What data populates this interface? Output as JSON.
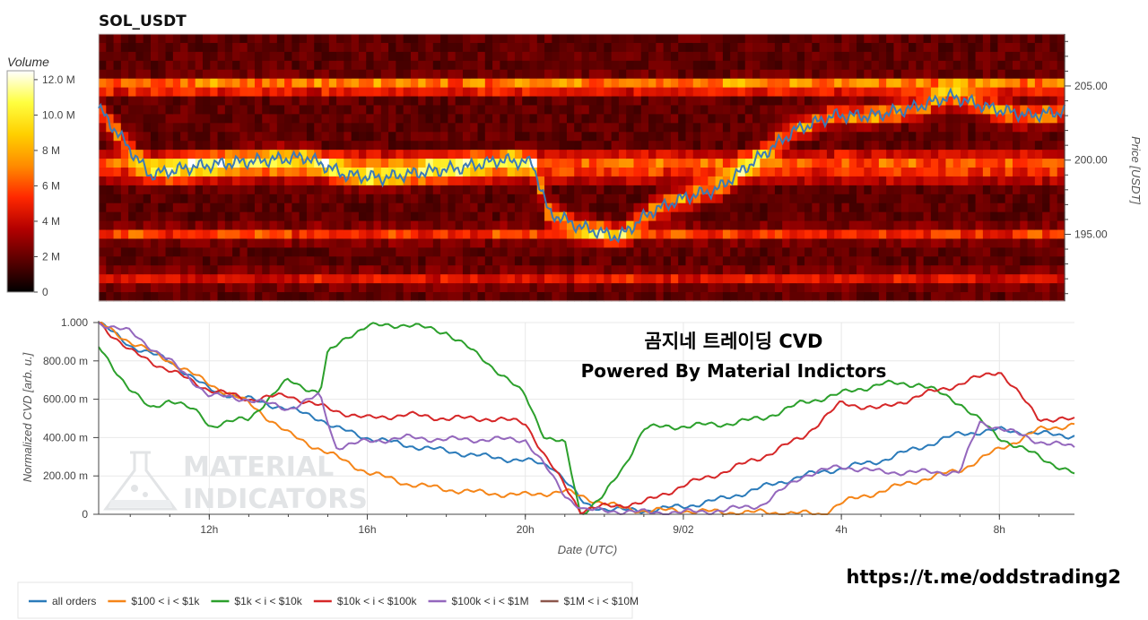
{
  "chart_data": [
    {
      "type": "heatmap",
      "title": "SOL_USDT",
      "ylabel": "Price [USDT]",
      "ylim": [
        190.5,
        208.5
      ],
      "y_ticks": [
        "205.00",
        "200.00",
        "195.00"
      ],
      "colorbar": {
        "label": "Volume",
        "range": [
          0,
          12500000
        ],
        "ticks": [
          "12.0 M",
          "10.0 M",
          "8 M",
          "6 M",
          "4 M",
          "2 M",
          "0"
        ]
      },
      "colormap": [
        "#000000",
        "#5a0000",
        "#b30000",
        "#ff2800",
        "#ff8c00",
        "#ffd000",
        "#ffff40",
        "#ffffff"
      ],
      "price_series": {
        "color": "#3d7ab5",
        "x_hours": [
          9.2,
          10.5,
          11.5,
          12.5,
          13.5,
          14.5,
          15.5,
          16.5,
          17.5,
          18.5,
          19.5,
          20.3,
          20.7,
          21.5,
          22.5,
          23.3,
          24.2,
          25.0,
          26.0,
          27.0,
          28.0,
          29.0,
          30.0,
          31.0,
          32.0,
          33.0,
          33.9
        ],
        "values": [
          203.5,
          199.0,
          199.5,
          199.8,
          200.0,
          200.2,
          199.0,
          198.8,
          199.2,
          199.5,
          200.0,
          199.8,
          196.5,
          195.5,
          194.8,
          196.5,
          197.5,
          198.0,
          200.0,
          202.0,
          203.0,
          203.0,
          203.5,
          204.3,
          203.5,
          203.0,
          203.3
        ]
      },
      "heat_levels": [
        {
          "price": 205.0,
          "volume": 8000000
        },
        {
          "price": 200.0,
          "volume": 6500000
        },
        {
          "price": 199.0,
          "volume": 5000000
        },
        {
          "price": 195.0,
          "volume": 4500000
        },
        {
          "price": 192.0,
          "volume": 3500000
        }
      ]
    },
    {
      "type": "line",
      "title": "곰지네 트레이딩 CVD",
      "subtitle": "Powered By Material Indictors",
      "xlabel": "Date (UTC)",
      "ylabel": "Normalized CVD [arb. u.]",
      "xlim": [
        9.2,
        33.9
      ],
      "ylim": [
        0,
        1.0
      ],
      "x_ticks": [
        {
          "hour": 12,
          "label": "12h"
        },
        {
          "hour": 16,
          "label": "16h"
        },
        {
          "hour": 20,
          "label": "20h"
        },
        {
          "hour": 24,
          "label": "9/02"
        },
        {
          "hour": 28,
          "label": "4h"
        },
        {
          "hour": 32,
          "label": "8h"
        }
      ],
      "y_ticks": [
        "1.000",
        "800.00 m",
        "600.00 m",
        "400.00 m",
        "200.00 m",
        "0"
      ],
      "series": [
        {
          "name": "all orders",
          "color": "#2b7bba",
          "x": [
            9.2,
            10,
            11,
            12,
            13,
            14,
            14.8,
            15.2,
            16,
            17,
            18,
            19,
            20,
            20.7,
            21,
            21.5,
            22,
            22.5,
            23,
            24,
            25,
            26,
            27,
            28,
            29,
            30,
            31,
            32,
            33,
            33.9
          ],
          "values": [
            1.0,
            0.88,
            0.8,
            0.65,
            0.6,
            0.55,
            0.5,
            0.45,
            0.4,
            0.36,
            0.33,
            0.3,
            0.28,
            0.25,
            0.18,
            0.05,
            0.03,
            0.02,
            0.02,
            0.04,
            0.08,
            0.14,
            0.2,
            0.24,
            0.28,
            0.35,
            0.42,
            0.44,
            0.42,
            0.41
          ]
        },
        {
          "name": "$100 < i < $1k",
          "color": "#f58518",
          "x": [
            9.2,
            10,
            11,
            12,
            13,
            14,
            15,
            16,
            17,
            18,
            19,
            20,
            20.5,
            21,
            21.8,
            22.5,
            23,
            24,
            25,
            26,
            27,
            27.5,
            28,
            29,
            30,
            31,
            32,
            33,
            33.9
          ],
          "values": [
            1.0,
            0.9,
            0.8,
            0.68,
            0.58,
            0.42,
            0.32,
            0.22,
            0.16,
            0.13,
            0.11,
            0.1,
            0.11,
            0.12,
            0.07,
            0.03,
            0.02,
            0.02,
            0.01,
            0.01,
            0.005,
            0.0,
            0.06,
            0.12,
            0.18,
            0.23,
            0.34,
            0.44,
            0.47
          ]
        },
        {
          "name": "$1k < i < $10k",
          "color": "#2ca02c",
          "x": [
            9.2,
            10,
            10.5,
            11,
            11.8,
            12,
            13,
            14,
            14.8,
            15,
            15.5,
            16,
            17,
            18,
            19,
            20,
            20.5,
            21,
            21.4,
            22,
            22.5,
            23,
            24,
            25,
            26,
            27,
            28,
            29,
            30,
            31,
            32,
            33,
            33.9
          ],
          "values": [
            0.87,
            0.65,
            0.55,
            0.6,
            0.52,
            0.46,
            0.5,
            0.7,
            0.63,
            0.84,
            0.93,
            0.98,
            0.99,
            0.95,
            0.8,
            0.62,
            0.4,
            0.37,
            0.0,
            0.1,
            0.25,
            0.45,
            0.46,
            0.47,
            0.5,
            0.58,
            0.63,
            0.68,
            0.68,
            0.58,
            0.4,
            0.3,
            0.21
          ]
        },
        {
          "name": "$10k < i < $100k",
          "color": "#d62728",
          "x": [
            9.2,
            10,
            11,
            12,
            13,
            14,
            15,
            16,
            17,
            18,
            19,
            20,
            20.5,
            21,
            21.4,
            22,
            23,
            24,
            25,
            26,
            27,
            28,
            29,
            30,
            31,
            32,
            33,
            33.9
          ],
          "values": [
            1.0,
            0.85,
            0.75,
            0.65,
            0.6,
            0.62,
            0.55,
            0.5,
            0.52,
            0.5,
            0.5,
            0.48,
            0.3,
            0.15,
            0.02,
            0.04,
            0.06,
            0.15,
            0.22,
            0.3,
            0.4,
            0.58,
            0.55,
            0.62,
            0.68,
            0.75,
            0.5,
            0.49
          ]
        },
        {
          "name": "$100k < i < $1M",
          "color": "#9467bd",
          "x": [
            9.2,
            10,
            11,
            12,
            13,
            14,
            14.8,
            15.2,
            16,
            17,
            18,
            19,
            20,
            20.5,
            21,
            21.5,
            22,
            23,
            24,
            25,
            26,
            27,
            28,
            29,
            30,
            31,
            31.5,
            32,
            33,
            33.9
          ],
          "values": [
            1.0,
            0.95,
            0.8,
            0.62,
            0.6,
            0.55,
            0.62,
            0.35,
            0.38,
            0.4,
            0.39,
            0.39,
            0.39,
            0.25,
            0.1,
            0.02,
            0.02,
            0.01,
            0.01,
            0.02,
            0.05,
            0.2,
            0.25,
            0.22,
            0.22,
            0.22,
            0.48,
            0.45,
            0.38,
            0.35
          ]
        },
        {
          "name": "$1M < i < $10M",
          "color": "#8c564b",
          "x": [],
          "values": []
        }
      ]
    }
  ],
  "watermark": {
    "line1": "MATERIAL",
    "line2": "INDICATORS",
    "icon": "flask-icon"
  },
  "footer_url": "https://t.me/oddstrading2"
}
